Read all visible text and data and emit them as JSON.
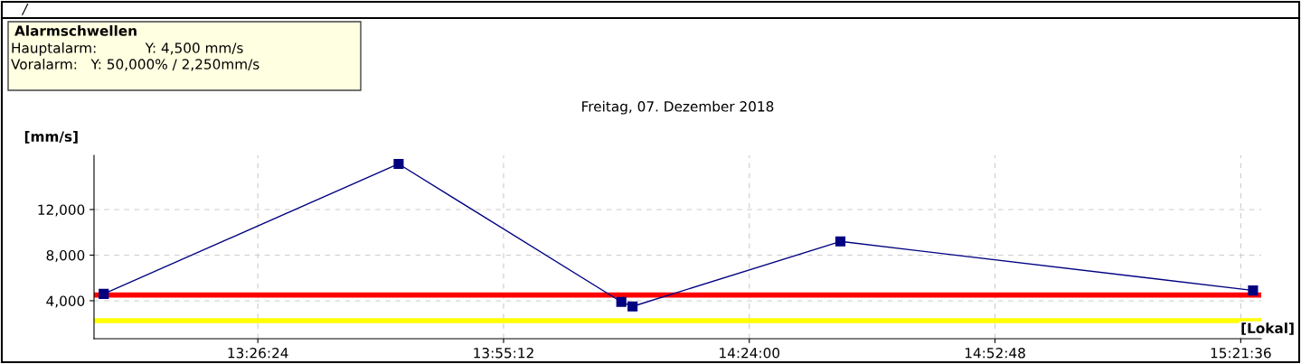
{
  "chart_data": {
    "type": "line",
    "title": "Freitag, 07. Dezember 2018",
    "ylabel": "[mm/s]",
    "xlabel": "[Lokal]",
    "annotations": [
      "/",
      "Alarmschwellen",
      "Hauptalarm:           Y: 4,500 mm/s",
      "Voralarm:   Y: 50,000% / 2,250mm/s"
    ],
    "x": [
      13.139,
      13.715,
      14.15,
      14.172,
      14.578,
      15.384
    ],
    "series": [
      {
        "color": "#000080",
        "values": [
          4600,
          16000,
          3900,
          3500,
          9200,
          4900
        ]
      }
    ],
    "marker": "square",
    "line_style": "solid",
    "grid": true,
    "xlim": [
      13.12,
      15.4
    ],
    "xticks": [
      {
        "value": 13.44,
        "label": "13:26:24"
      },
      {
        "value": 13.92,
        "label": "13:55:12"
      },
      {
        "value": 14.4,
        "label": "14:24:00"
      },
      {
        "value": 14.88,
        "label": "14:52:48"
      },
      {
        "value": 15.36,
        "label": "15:21:36"
      }
    ],
    "ylim": [
      670,
      16750
    ],
    "yticks": [
      {
        "value": 4000,
        "label": "4,000"
      },
      {
        "value": 8000,
        "label": "8,000"
      },
      {
        "value": 12000,
        "label": "12,000"
      }
    ],
    "ref_lines": [
      {
        "axis": "y",
        "value": 4500,
        "color": "#ff0000"
      },
      {
        "axis": "y",
        "value": 2250,
        "color": "#ffff00"
      }
    ]
  }
}
